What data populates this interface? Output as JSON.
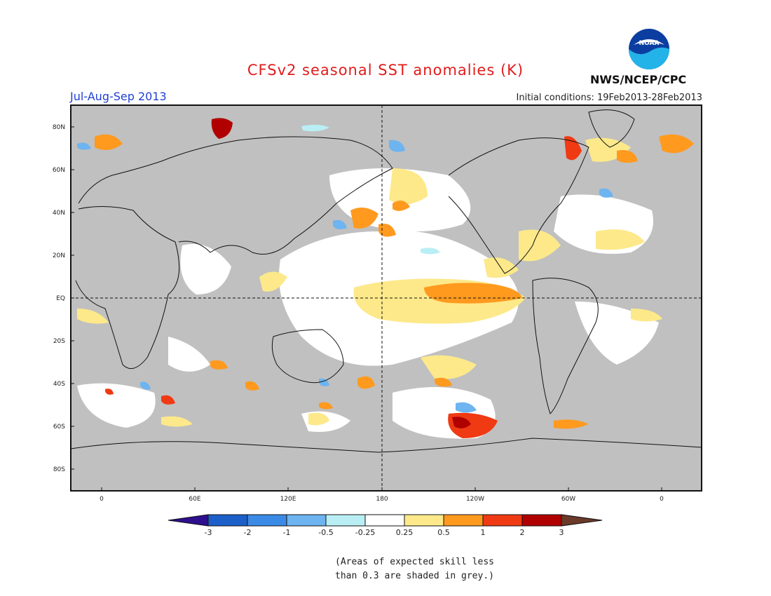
{
  "title": "CFSv2 seasonal SST anomalies (K)",
  "season": "Jul-Aug-Sep 2013",
  "initial_conditions": "Initial conditions: 19Feb2013-28Feb2013",
  "agency": "NWS/NCEP/CPC",
  "logo_text": "NOAA",
  "lat_labels": [
    "80N",
    "60N",
    "40N",
    "20N",
    "EQ",
    "20S",
    "40S",
    "60S",
    "80S"
  ],
  "lon_labels": [
    "0",
    "60E",
    "120E",
    "180",
    "120W",
    "60W",
    "0"
  ],
  "colorbar": {
    "ticks": [
      "-3",
      "-2",
      "-1",
      "-0.5",
      "-0.25",
      "0.25",
      "0.5",
      "1",
      "2",
      "3"
    ],
    "colors": [
      "#2e0f8e",
      "#1c5fc9",
      "#3b8be6",
      "#6db4f0",
      "#b9eef5",
      "#ffffff",
      "#fde98a",
      "#ff9a1f",
      "#ef3a14",
      "#b00000",
      "#6b3a2a",
      "#7a4a3a"
    ]
  },
  "note_line1": "(Areas of expected skill less",
  "note_line2": "than 0.3 are shaded in grey.)",
  "colors": {
    "grey": "#c0c0c0",
    "white": "#ffffff",
    "land": "#ffffff"
  }
}
